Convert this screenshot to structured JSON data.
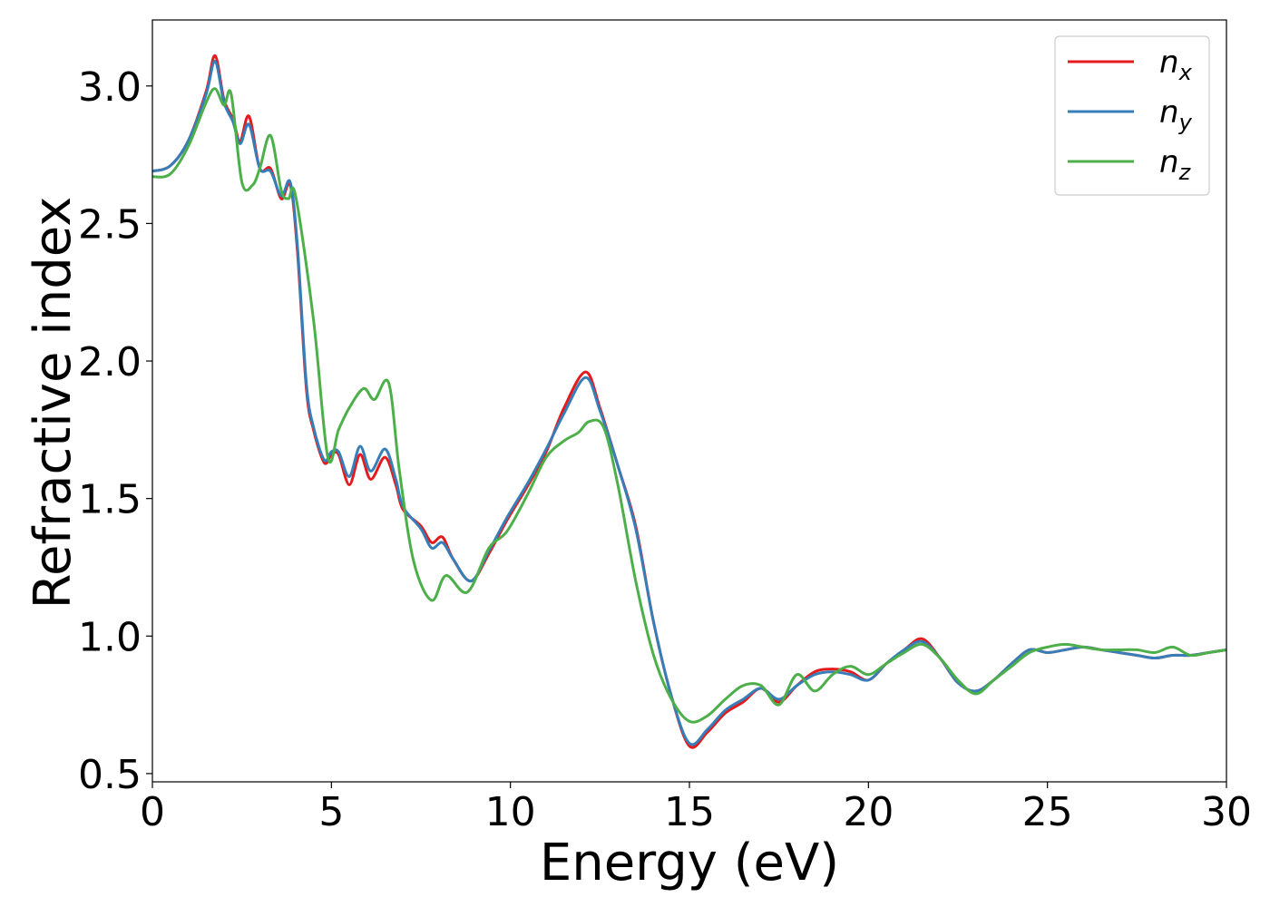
{
  "chart_data": {
    "type": "line",
    "title": "",
    "xlabel": "Energy (eV)",
    "ylabel": "Refractive index",
    "xlim": [
      0,
      30
    ],
    "ylim": [
      0.47,
      3.24
    ],
    "xticks": [
      0,
      5,
      10,
      15,
      20,
      25,
      30
    ],
    "xtick_labels": [
      "0",
      "5",
      "10",
      "15",
      "20",
      "25",
      "30"
    ],
    "yticks": [
      0.5,
      1.0,
      1.5,
      2.0,
      2.5,
      3.0
    ],
    "ytick_labels": [
      "0.5",
      "1.0",
      "1.5",
      "2.0",
      "2.5",
      "3.0"
    ],
    "grid": false,
    "legend_position": "top-right",
    "series": [
      {
        "name": "n_x",
        "label_base": "n",
        "label_sub": "x",
        "color": "#e41a1c",
        "x": [
          0,
          0.5,
          1.0,
          1.5,
          1.75,
          2.0,
          2.25,
          2.45,
          2.7,
          3.0,
          3.3,
          3.6,
          3.85,
          4.05,
          4.3,
          4.5,
          4.8,
          5.0,
          5.2,
          5.5,
          5.8,
          6.1,
          6.5,
          6.8,
          7.0,
          7.5,
          7.8,
          8.1,
          8.4,
          8.9,
          9.4,
          9.9,
          10.5,
          11.0,
          11.5,
          12.1,
          12.5,
          13.0,
          13.5,
          14.0,
          14.5,
          15.0,
          15.5,
          16.0,
          16.5,
          17.0,
          17.5,
          18.0,
          18.5,
          19.0,
          19.5,
          20.0,
          20.5,
          21.0,
          21.5,
          22.0,
          22.5,
          23.0,
          23.5,
          24.0,
          24.5,
          25.0,
          25.5,
          26.0,
          26.5,
          27.0,
          27.5,
          28.0,
          28.5,
          29.0,
          29.5,
          30.0
        ],
        "y": [
          2.69,
          2.71,
          2.8,
          2.98,
          3.11,
          2.95,
          2.88,
          2.8,
          2.89,
          2.7,
          2.7,
          2.59,
          2.64,
          2.4,
          1.9,
          1.75,
          1.63,
          1.66,
          1.66,
          1.55,
          1.66,
          1.57,
          1.65,
          1.55,
          1.46,
          1.4,
          1.34,
          1.36,
          1.28,
          1.2,
          1.3,
          1.42,
          1.55,
          1.67,
          1.83,
          1.96,
          1.83,
          1.62,
          1.4,
          1.05,
          0.78,
          0.6,
          0.65,
          0.72,
          0.76,
          0.81,
          0.76,
          0.82,
          0.87,
          0.88,
          0.87,
          0.84,
          0.9,
          0.95,
          0.99,
          0.92,
          0.83,
          0.8,
          0.84,
          0.9,
          0.95,
          0.94,
          0.95,
          0.96,
          0.95,
          0.94,
          0.93,
          0.92,
          0.93,
          0.93,
          0.94,
          0.95
        ]
      },
      {
        "name": "n_y",
        "label_base": "n",
        "label_sub": "y",
        "color": "#377eb8",
        "x": [
          0,
          0.5,
          1.0,
          1.5,
          1.75,
          2.0,
          2.25,
          2.45,
          2.7,
          3.0,
          3.3,
          3.6,
          3.85,
          4.05,
          4.3,
          4.5,
          4.8,
          5.0,
          5.2,
          5.5,
          5.8,
          6.1,
          6.5,
          6.8,
          7.0,
          7.5,
          7.8,
          8.1,
          8.4,
          8.9,
          9.4,
          9.9,
          10.5,
          11.0,
          11.5,
          12.1,
          12.5,
          13.0,
          13.5,
          14.0,
          14.5,
          15.0,
          15.5,
          16.0,
          16.5,
          17.0,
          17.5,
          18.0,
          18.5,
          19.0,
          19.5,
          20.0,
          20.5,
          21.0,
          21.5,
          22.0,
          22.5,
          23.0,
          23.5,
          24.0,
          24.5,
          25.0,
          25.5,
          26.0,
          26.5,
          27.0,
          27.5,
          28.0,
          28.5,
          29.0,
          29.5,
          30.0
        ],
        "y": [
          2.69,
          2.71,
          2.8,
          2.97,
          3.09,
          2.94,
          2.87,
          2.79,
          2.86,
          2.7,
          2.69,
          2.6,
          2.65,
          2.42,
          1.92,
          1.76,
          1.64,
          1.67,
          1.67,
          1.58,
          1.69,
          1.6,
          1.68,
          1.57,
          1.47,
          1.39,
          1.32,
          1.34,
          1.28,
          1.2,
          1.31,
          1.43,
          1.56,
          1.68,
          1.81,
          1.94,
          1.82,
          1.62,
          1.39,
          1.05,
          0.78,
          0.61,
          0.66,
          0.73,
          0.77,
          0.81,
          0.77,
          0.82,
          0.86,
          0.87,
          0.86,
          0.84,
          0.9,
          0.95,
          0.98,
          0.92,
          0.83,
          0.8,
          0.84,
          0.9,
          0.95,
          0.94,
          0.95,
          0.96,
          0.95,
          0.94,
          0.93,
          0.92,
          0.93,
          0.93,
          0.94,
          0.95
        ]
      },
      {
        "name": "n_z",
        "label_base": "n",
        "label_sub": "z",
        "color": "#4daf4a",
        "x": [
          0,
          0.5,
          1.0,
          1.5,
          1.75,
          2.0,
          2.2,
          2.5,
          2.8,
          3.0,
          3.3,
          3.6,
          3.8,
          4.0,
          4.5,
          4.9,
          5.2,
          5.5,
          5.9,
          6.2,
          6.6,
          6.9,
          7.3,
          7.8,
          8.2,
          8.8,
          9.4,
          9.9,
          10.5,
          11.0,
          11.5,
          11.9,
          12.2,
          12.6,
          13.0,
          13.5,
          14.0,
          14.5,
          15.0,
          15.5,
          16.0,
          16.5,
          17.0,
          17.5,
          18.0,
          18.5,
          19.0,
          19.5,
          20.0,
          20.5,
          21.0,
          21.5,
          22.0,
          22.5,
          23.0,
          23.5,
          24.0,
          24.5,
          25.0,
          25.5,
          26.0,
          26.5,
          27.0,
          27.5,
          28.0,
          28.5,
          29.0,
          29.5,
          30.0
        ],
        "y": [
          2.67,
          2.68,
          2.78,
          2.94,
          2.99,
          2.93,
          2.97,
          2.65,
          2.64,
          2.7,
          2.82,
          2.62,
          2.59,
          2.6,
          2.15,
          1.65,
          1.75,
          1.83,
          1.9,
          1.86,
          1.92,
          1.6,
          1.27,
          1.13,
          1.22,
          1.16,
          1.32,
          1.38,
          1.52,
          1.65,
          1.71,
          1.74,
          1.78,
          1.76,
          1.55,
          1.2,
          0.93,
          0.77,
          0.69,
          0.71,
          0.77,
          0.82,
          0.82,
          0.75,
          0.86,
          0.8,
          0.86,
          0.89,
          0.86,
          0.9,
          0.94,
          0.97,
          0.92,
          0.84,
          0.79,
          0.84,
          0.89,
          0.94,
          0.96,
          0.97,
          0.96,
          0.95,
          0.95,
          0.95,
          0.94,
          0.96,
          0.93,
          0.94,
          0.95
        ]
      }
    ]
  }
}
